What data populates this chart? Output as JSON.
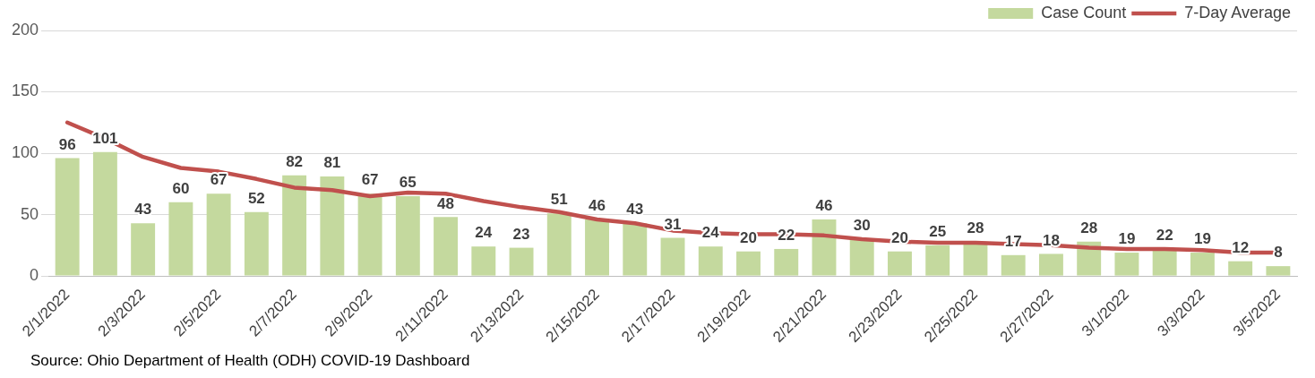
{
  "chart_data": {
    "type": "bar",
    "categories": [
      "2/1/2022",
      null,
      "2/3/2022",
      null,
      "2/5/2022",
      null,
      "2/7/2022",
      null,
      "2/9/2022",
      null,
      "2/11/2022",
      null,
      "2/13/2022",
      null,
      "2/15/2022",
      null,
      "2/17/2022",
      null,
      "2/19/2022",
      null,
      "2/21/2022",
      null,
      "2/23/2022",
      null,
      "2/25/2022",
      null,
      "2/27/2022",
      null,
      "3/1/2022",
      null,
      "3/3/2022",
      null,
      "3/5/2022"
    ],
    "series": [
      {
        "name": "Case Count",
        "color": "#c4d99e",
        "values": [
          96,
          101,
          43,
          60,
          67,
          52,
          82,
          81,
          67,
          65,
          48,
          24,
          23,
          51,
          46,
          43,
          31,
          24,
          20,
          22,
          46,
          30,
          20,
          25,
          28,
          17,
          18,
          28,
          19,
          22,
          19,
          12,
          8
        ],
        "value_labels": [
          "96",
          "101",
          "43",
          "60",
          "67",
          "52",
          "82",
          "81",
          "67",
          "65",
          "48",
          "24",
          "23",
          "51",
          "46",
          "43",
          "31",
          "24",
          "20",
          "22",
          "46",
          "30",
          "20",
          "25",
          "28",
          "17",
          "18",
          "28",
          "19",
          "22",
          "19",
          "12",
          "8"
        ]
      },
      {
        "name": "7-Day Average",
        "type": "line",
        "color": "#c0504d",
        "values": [
          125,
          112,
          97,
          88,
          85,
          79,
          72,
          70,
          65,
          68,
          67,
          61,
          56,
          52,
          46,
          43,
          37,
          35,
          34,
          34,
          33,
          30,
          28,
          27,
          27,
          26,
          25,
          23,
          22,
          22,
          21,
          19,
          19
        ]
      }
    ],
    "ylim": [
      0,
      200
    ],
    "yticks": [
      0,
      50,
      100,
      150,
      200
    ],
    "grid": "y",
    "legend": "top right",
    "marker": "none",
    "line_style": "solid",
    "annotations": [
      "Source:  Ohio Department of Health (ODH) COVID-19 Dashboard"
    ]
  }
}
